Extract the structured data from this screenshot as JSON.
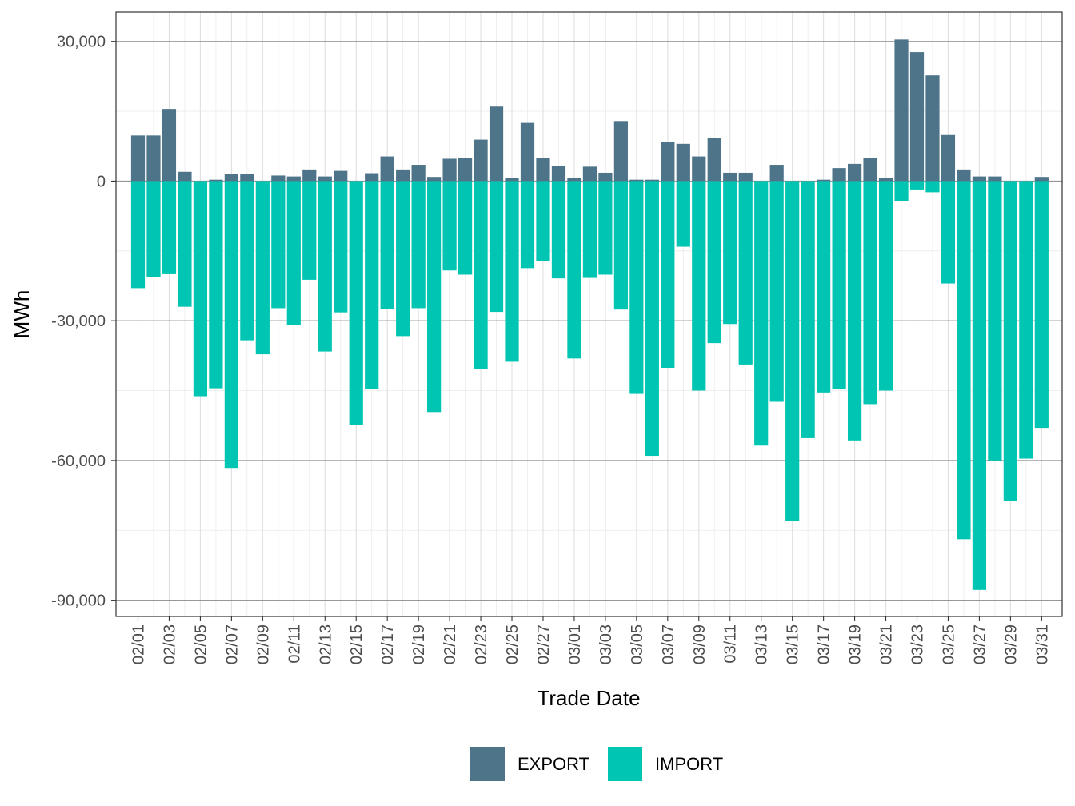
{
  "chart_data": {
    "type": "bar",
    "stacked": "diverging",
    "title": "",
    "xlabel": "Trade Date",
    "ylabel": "MWh",
    "ylim": [
      -93500,
      36300
    ],
    "y_ticks": [
      30000,
      0,
      -30000,
      -60000,
      -90000
    ],
    "y_tick_labels": [
      "30,000",
      "0",
      "-30,000",
      "-60,000",
      "-90,000"
    ],
    "categories": [
      "02/01",
      "02/02",
      "02/03",
      "02/04",
      "02/05",
      "02/06",
      "02/07",
      "02/08",
      "02/09",
      "02/10",
      "02/11",
      "02/12",
      "02/13",
      "02/14",
      "02/15",
      "02/16",
      "02/17",
      "02/18",
      "02/19",
      "02/20",
      "02/21",
      "02/22",
      "02/23",
      "02/24",
      "02/25",
      "02/26",
      "02/27",
      "02/28",
      "03/01",
      "03/02",
      "03/03",
      "03/04",
      "03/05",
      "03/06",
      "03/07",
      "03/08",
      "03/09",
      "03/10",
      "03/11",
      "03/12",
      "03/13",
      "03/14",
      "03/15",
      "03/16",
      "03/17",
      "03/18",
      "03/19",
      "03/20",
      "03/21",
      "03/22",
      "03/23",
      "03/24",
      "03/25",
      "03/26",
      "03/27",
      "03/28",
      "03/29",
      "03/30",
      "03/31"
    ],
    "x_tick_labels": [
      "02/01",
      "02/03",
      "02/05",
      "02/07",
      "02/09",
      "02/11",
      "02/13",
      "02/15",
      "02/17",
      "02/19",
      "02/21",
      "02/23",
      "02/25",
      "02/27",
      "03/01",
      "03/03",
      "03/05",
      "03/07",
      "03/09",
      "03/11",
      "03/13",
      "03/15",
      "03/17",
      "03/19",
      "03/21",
      "03/23",
      "03/25",
      "03/27",
      "03/29",
      "03/31"
    ],
    "series": [
      {
        "name": "EXPORT",
        "color": "#4e7489",
        "values": [
          9800,
          9800,
          15500,
          2000,
          0,
          300,
          1500,
          1500,
          0,
          1200,
          1000,
          2500,
          1000,
          2200,
          0,
          1700,
          5300,
          2500,
          3500,
          900,
          4800,
          5000,
          8900,
          16000,
          700,
          12500,
          5000,
          3300,
          700,
          3100,
          1800,
          12900,
          300,
          300,
          8400,
          8000,
          5300,
          9200,
          1800,
          1800,
          0,
          3500,
          0,
          0,
          300,
          2800,
          3700,
          5000,
          700,
          30400,
          27700,
          22700,
          9900,
          2500,
          1000,
          1000,
          0,
          0,
          900
        ]
      },
      {
        "name": "IMPORT",
        "color": "#00c5b2",
        "values": [
          -23000,
          -20700,
          -20000,
          -27000,
          -46200,
          -44500,
          -61600,
          -34200,
          -37200,
          -27300,
          -30900,
          -21200,
          -36600,
          -28200,
          -52400,
          -44700,
          -27400,
          -33300,
          -27300,
          -49600,
          -19200,
          -20100,
          -40300,
          -28100,
          -38800,
          -18700,
          -17100,
          -20900,
          -38100,
          -20800,
          -20100,
          -27600,
          -45700,
          -59000,
          -40100,
          -14100,
          -45000,
          -34800,
          -30700,
          -39400,
          -56800,
          -47400,
          -73000,
          -55200,
          -45400,
          -44600,
          -55700,
          -47900,
          -45000,
          -4300,
          -1800,
          -2400,
          -22000,
          -76900,
          -87800,
          -60000,
          -68600,
          -59600,
          -53000
        ]
      }
    ],
    "legend": {
      "position": "bottom",
      "items": [
        "EXPORT",
        "IMPORT"
      ]
    }
  }
}
